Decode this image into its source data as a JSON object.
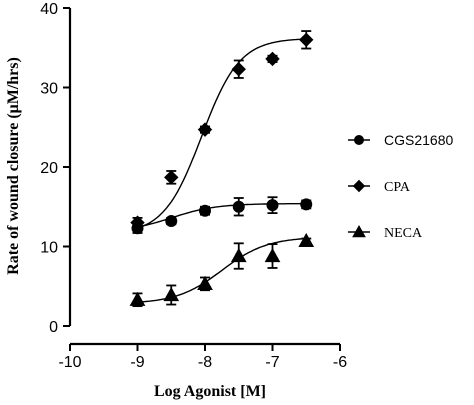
{
  "chart_data": {
    "type": "scatter",
    "title": "",
    "xlabel": "Log Agonist [M]",
    "ylabel": "Rate of wound closure (μM/hrs)",
    "xlim": [
      -10,
      -6
    ],
    "ylim": [
      0,
      40
    ],
    "x_ticks": [
      -10,
      -9,
      -8,
      -7,
      -6
    ],
    "y_ticks": [
      0,
      10,
      20,
      30,
      40
    ],
    "x_tick_labels": [
      "-10",
      "-9",
      "-8",
      "-7",
      "-6"
    ],
    "y_tick_labels": [
      "0",
      "10",
      "20",
      "30",
      "40"
    ],
    "grid": false,
    "legend_position": "right",
    "series": [
      {
        "name": "CGS21680",
        "marker": "circle",
        "x": [
          -9,
          -8.5,
          -8,
          -7.5,
          -7,
          -6.5
        ],
        "y": [
          12.3,
          13.2,
          14.5,
          15.0,
          15.2,
          15.3
        ],
        "err": [
          0.6,
          0.4,
          0.5,
          1.1,
          1.0,
          0.5
        ],
        "fit": {
          "bottom": 11.8,
          "top": 15.4,
          "logEC50": -8.5,
          "hill": 1.3
        }
      },
      {
        "name": "CPA",
        "marker": "diamond",
        "x": [
          -9,
          -8.5,
          -8,
          -7.5,
          -7,
          -6.5
        ],
        "y": [
          13.0,
          18.7,
          24.7,
          32.3,
          33.6,
          36.0
        ],
        "err": [
          0.6,
          0.8,
          0.4,
          1.1,
          0.4,
          1.1
        ],
        "fit": {
          "bottom": 11.5,
          "top": 36.2,
          "logEC50": -8.05,
          "hill": 1.55
        }
      },
      {
        "name": "NECA",
        "marker": "triangle",
        "x": [
          -9,
          -8.5,
          -8,
          -7.5,
          -7,
          -6.5
        ],
        "y": [
          3.3,
          3.9,
          5.3,
          8.8,
          8.8,
          10.7
        ],
        "err": [
          0.8,
          1.2,
          0.8,
          1.6,
          1.5,
          0.3
        ],
        "fit": {
          "bottom": 2.8,
          "top": 11.2,
          "logEC50": -7.75,
          "hill": 1.3
        }
      }
    ]
  }
}
